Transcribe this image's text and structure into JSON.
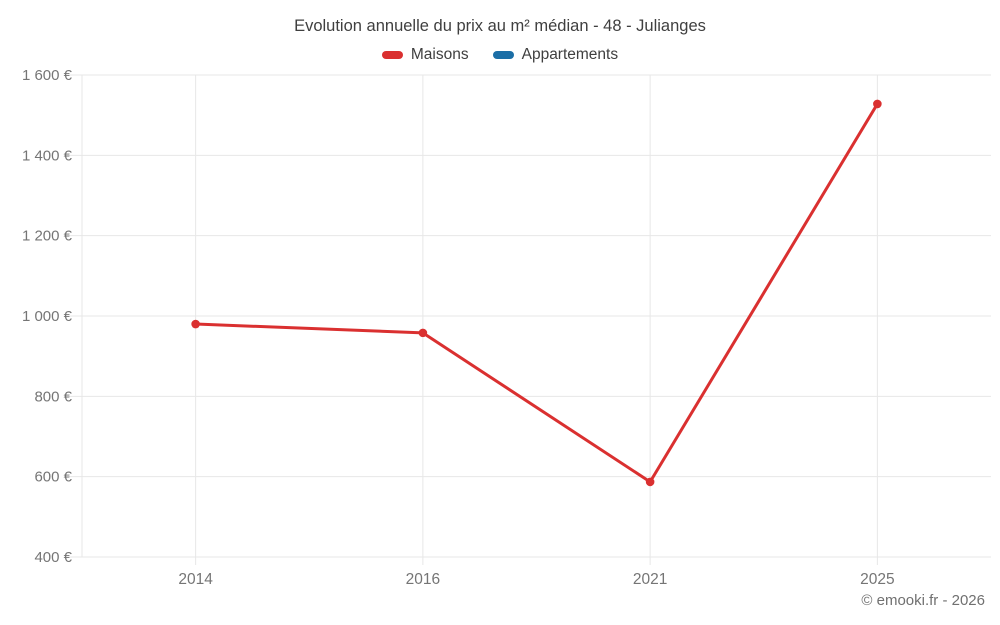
{
  "chart": {
    "title": "Evolution annuelle du prix au m² médian - 48 - Julianges",
    "footer": "© emooki.fr - 2026"
  },
  "legend": {
    "items": [
      {
        "label": "Maisons",
        "color": "#da3030"
      },
      {
        "label": "Appartements",
        "color": "#1b6ea6"
      }
    ]
  },
  "chart_data": {
    "type": "line",
    "title": "Evolution annuelle du prix au m² médian - 48 - Julianges",
    "categories": [
      "2014",
      "2016",
      "2021",
      "2025"
    ],
    "series": [
      {
        "name": "Maisons",
        "color": "#da3030",
        "values": [
          980,
          958,
          587,
          1528
        ]
      },
      {
        "name": "Appartements",
        "color": "#1b6ea6",
        "values": []
      }
    ],
    "xlabel": "",
    "ylabel": "",
    "ylim": [
      400,
      1600
    ],
    "ytick_step": 200,
    "ytick_labels": [
      "400 €",
      "600 €",
      "800 €",
      "1 000 €",
      "1 200 €",
      "1 400 €",
      "1 600 €"
    ],
    "grid": true,
    "legend_position": "top",
    "grid_color": "#e7e7e7",
    "axis_text_color": "#757575",
    "line_width": 3,
    "point_radius": 4.3
  }
}
